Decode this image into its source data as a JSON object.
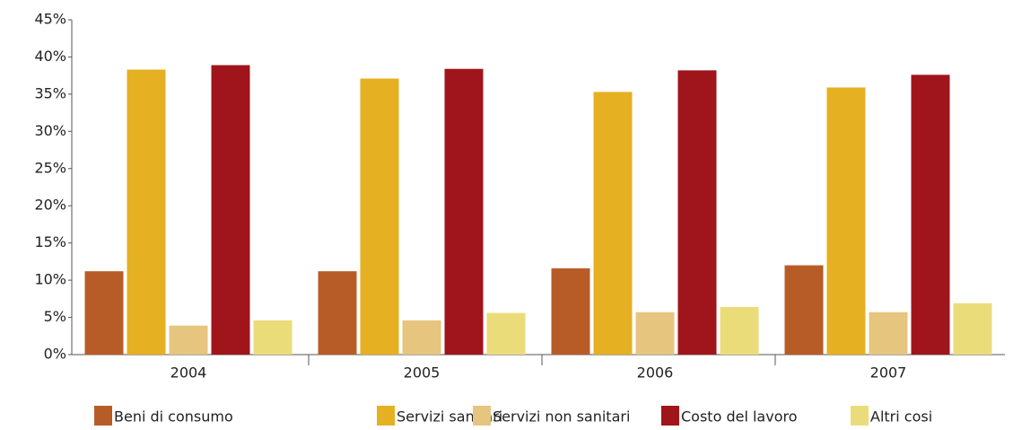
{
  "chart_data": {
    "type": "bar",
    "categories": [
      "2004",
      "2005",
      "2006",
      "2007"
    ],
    "series": [
      {
        "name": "Beni di consumo",
        "color": "#b85c27",
        "values": [
          11.2,
          11.2,
          11.6,
          12.0
        ]
      },
      {
        "name": "Servizi sanitari",
        "color": "#e5b022",
        "values": [
          38.3,
          37.1,
          35.3,
          35.9
        ]
      },
      {
        "name": "Servizi non sanitari",
        "color": "#e6c57f",
        "values": [
          3.9,
          4.6,
          5.7,
          5.7
        ]
      },
      {
        "name": "Costo del lavoro",
        "color": "#a0141b",
        "values": [
          38.9,
          38.4,
          38.2,
          37.6
        ]
      },
      {
        "name": "Altri cosi",
        "color": "#ebdc7a",
        "values": [
          4.6,
          5.6,
          6.4,
          6.9
        ]
      }
    ],
    "ylim": [
      0,
      45
    ],
    "yticks": [
      {
        "value": 0,
        "label": "0%"
      },
      {
        "value": 5,
        "label": "5%"
      },
      {
        "value": 10,
        "label": "10%"
      },
      {
        "value": 15,
        "label": "15%"
      },
      {
        "value": 20,
        "label": "20%"
      },
      {
        "value": 25,
        "label": "25%"
      },
      {
        "value": 30,
        "label": "30%"
      },
      {
        "value": 35,
        "label": "35%"
      },
      {
        "value": 40,
        "label": "40%"
      },
      {
        "value": 45,
        "label": "45%"
      }
    ],
    "grid": false,
    "legend": "bottom"
  }
}
